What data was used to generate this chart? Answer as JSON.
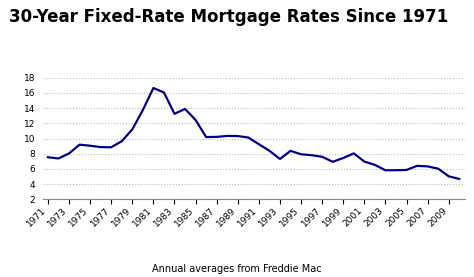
{
  "title": "30-Year Fixed-Rate Mortgage Rates Since 1971",
  "subtitle": "Annual averages from Freddie Mac",
  "line_color": "#00008B",
  "background_color": "#ffffff",
  "years": [
    1971,
    1972,
    1973,
    1974,
    1975,
    1976,
    1977,
    1978,
    1979,
    1980,
    1981,
    1982,
    1983,
    1984,
    1985,
    1986,
    1987,
    1988,
    1989,
    1990,
    1991,
    1992,
    1993,
    1994,
    1995,
    1996,
    1997,
    1998,
    1999,
    2000,
    2001,
    2002,
    2003,
    2004,
    2005,
    2006,
    2007,
    2008,
    2009,
    2010
  ],
  "rates": [
    7.54,
    7.38,
    8.04,
    9.19,
    9.05,
    8.87,
    8.85,
    9.64,
    11.2,
    13.74,
    16.63,
    16.04,
    13.24,
    13.88,
    12.43,
    10.19,
    10.21,
    10.34,
    10.32,
    10.13,
    9.25,
    8.39,
    7.31,
    8.38,
    7.93,
    7.81,
    7.6,
    6.94,
    7.44,
    8.05,
    6.97,
    6.54,
    5.83,
    5.84,
    5.87,
    6.41,
    6.34,
    6.04,
    5.04,
    4.69
  ],
  "ylim": [
    2,
    18
  ],
  "yticks": [
    2,
    4,
    6,
    8,
    10,
    12,
    14,
    16,
    18
  ],
  "xtick_years": [
    1971,
    1973,
    1975,
    1977,
    1979,
    1981,
    1983,
    1985,
    1987,
    1989,
    1991,
    1993,
    1995,
    1997,
    1999,
    2001,
    2003,
    2005,
    2007,
    2009
  ],
  "title_fontsize": 12,
  "subtitle_fontsize": 7,
  "tick_fontsize": 6.5,
  "line_width": 1.6,
  "grid_color": "#bbbbbb",
  "title_fontweight": "bold"
}
